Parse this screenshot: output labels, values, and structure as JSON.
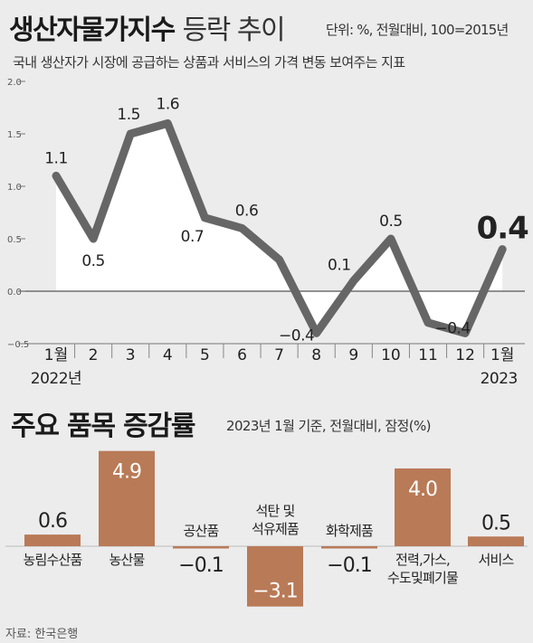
{
  "header": {
    "title_bold": "생산자물가지수",
    "title_light": "등락 추이",
    "unit": "단위: %, 전월대비, 100=2015년",
    "subtitle": "국내 생산자가 시장에 공급하는 상품과 서비스의 가격 변동 보여주는 지표"
  },
  "section2": {
    "title": "주요 품목 증감률",
    "subtitle": "2023년 1월 기준, 전월대비, 잠정(%)"
  },
  "source": "자료: 한국은행",
  "chart_data": [
    {
      "type": "line",
      "categories": [
        "1월",
        "2",
        "3",
        "4",
        "5",
        "6",
        "7",
        "8",
        "9",
        "10",
        "11",
        "12",
        "1월"
      ],
      "year_labels": [
        "2022년",
        "2023"
      ],
      "values": [
        1.1,
        0.5,
        1.5,
        1.6,
        0.7,
        0.6,
        0.3,
        -0.4,
        0.1,
        0.5,
        -0.3,
        -0.4,
        0.4
      ],
      "point_labels": [
        "1.1",
        "0.5",
        "1.5",
        "1.6",
        "0.7",
        "0.6",
        "",
        "−0.4",
        "0.1",
        "0.5",
        "",
        "−0.4",
        "0.4"
      ],
      "ylim": [
        -0.5,
        2.0
      ],
      "y_ticks": [
        "2.0",
        "1.5",
        "1.0",
        "0.5",
        "0.0",
        "−0.5"
      ],
      "y_tick_values": [
        2.0,
        1.5,
        1.0,
        0.5,
        0.0,
        -0.5
      ],
      "line_color": "#666666",
      "area_color": "#ffffff",
      "grid": false
    },
    {
      "type": "bar",
      "categories": [
        "농림수산품",
        "농산물",
        "공산품",
        "석탄 및\n석유제품",
        "화학제품",
        "전력,가스,\n수도및폐기물",
        "서비스"
      ],
      "values": [
        0.6,
        4.9,
        -0.1,
        -3.1,
        -0.1,
        4.0,
        0.5
      ],
      "value_labels": [
        "0.6",
        "4.9",
        "−0.1",
        "−3.1",
        "−0.1",
        "4.0",
        "0.5"
      ],
      "bar_color": "#b97a57"
    }
  ]
}
